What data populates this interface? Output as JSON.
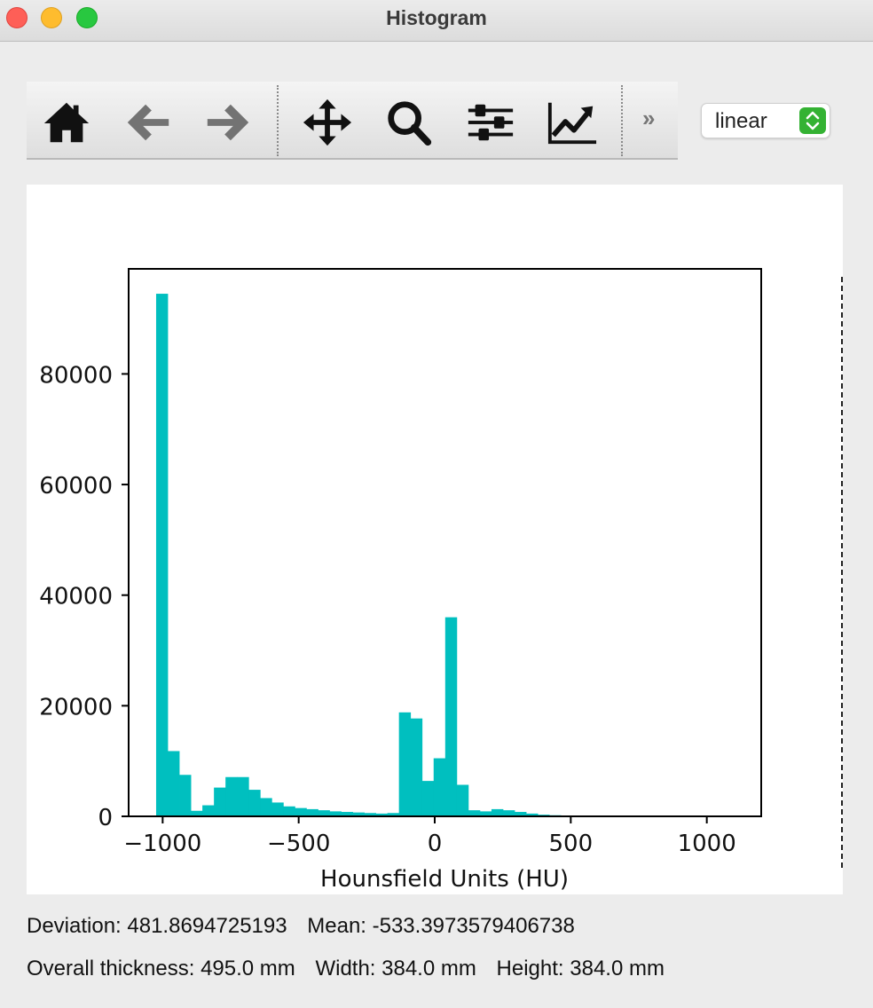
{
  "window": {
    "title": "Histogram"
  },
  "toolbar": {
    "buttons": [
      {
        "name": "home-icon"
      },
      {
        "name": "back-arrow-icon"
      },
      {
        "name": "forward-arrow-icon"
      },
      {
        "name": "pan-icon"
      },
      {
        "name": "zoom-icon"
      },
      {
        "name": "configure-subplots-icon"
      },
      {
        "name": "edit-axis-icon"
      }
    ],
    "more_label": "»"
  },
  "scale_select": {
    "value": "linear",
    "accent": "#34b233"
  },
  "chart_data": {
    "type": "bar",
    "xlabel": "Hounsfield Units (HU)",
    "ylabel": "",
    "xlim": [
      -1125,
      1200
    ],
    "ylim": [
      0,
      99000
    ],
    "xticks": [
      -1000,
      -500,
      0,
      500,
      1000
    ],
    "xtick_labels": [
      "−1000",
      "−500",
      "0",
      "500",
      "1000"
    ],
    "yticks": [
      0,
      20000,
      40000,
      60000,
      80000
    ],
    "ytick_labels": [
      "0",
      "20000",
      "40000",
      "60000",
      "80000"
    ],
    "bar_color": "#00bfbf",
    "bin_start": -1024,
    "bin_width": 42.5,
    "values": [
      94500,
      11800,
      7500,
      1000,
      2000,
      5200,
      7100,
      7100,
      4800,
      3300,
      2500,
      1800,
      1500,
      1300,
      1100,
      900,
      800,
      700,
      600,
      500,
      600,
      18800,
      17700,
      6400,
      10500,
      36000,
      5700,
      1100,
      900,
      1300,
      1100,
      800,
      500,
      300,
      200,
      100,
      50,
      20,
      10,
      5,
      3,
      2,
      1,
      1,
      0,
      0,
      0,
      0,
      0,
      0,
      0,
      0,
      0,
      0,
      0
    ]
  },
  "stats": {
    "deviation": "Deviation: 481.8694725193",
    "mean": "Mean: -533.3973579406738",
    "thickness": "Overall thickness: 495.0 mm",
    "width": "Width: 384.0 mm",
    "height": "Height: 384.0 mm"
  }
}
